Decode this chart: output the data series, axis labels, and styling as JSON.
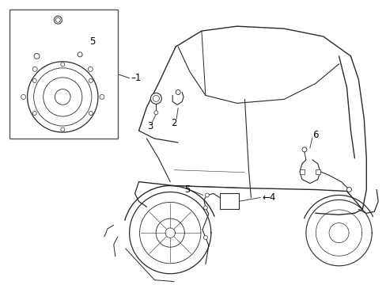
{
  "bg_color": "#ffffff",
  "line_color": "#2a2a2a",
  "text_color": "#000000",
  "fig_width": 4.89,
  "fig_height": 3.6,
  "dpi": 100,
  "label_fontsize": 8.5
}
